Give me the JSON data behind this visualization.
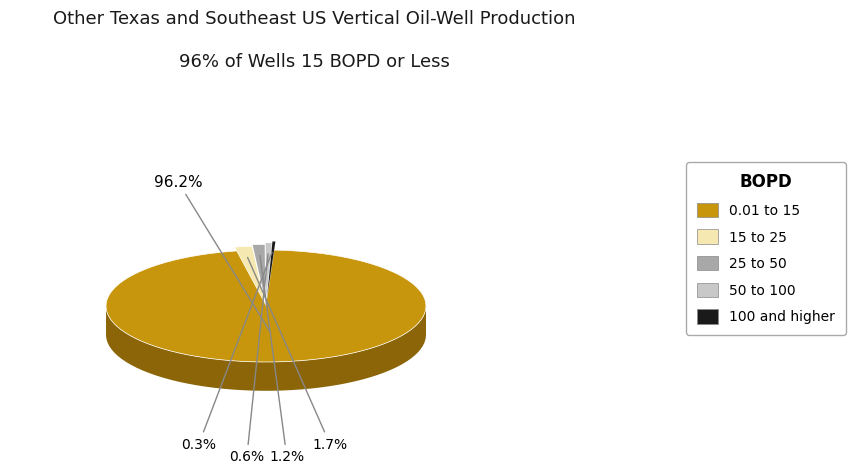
{
  "title_line1": "Other Texas and Southeast US Vertical Oil-Well Production",
  "title_line2": "96% of Wells 15 BOPD or Less",
  "slices": [
    96.2,
    1.7,
    1.2,
    0.6,
    0.3
  ],
  "labels": [
    "0.01 to 15",
    "15 to 25",
    "25 to 50",
    "50 to 100",
    "100 and higher"
  ],
  "colors": [
    "#C8960C",
    "#F5E8B0",
    "#A8A8A8",
    "#C8C8C8",
    "#1A1A1A"
  ],
  "side_colors": [
    "#8B6508",
    "#C8B878",
    "#787878",
    "#989898",
    "#101010"
  ],
  "explode": [
    0.0,
    0.07,
    0.1,
    0.13,
    0.16
  ],
  "pct_labels": [
    "96.2%",
    "1.7%",
    "1.2%",
    "0.6%",
    "0.3%"
  ],
  "legend_title": "BOPD",
  "background_color": "#FFFFFF",
  "startangle": 87,
  "depth": 0.18,
  "yscale": 0.35
}
